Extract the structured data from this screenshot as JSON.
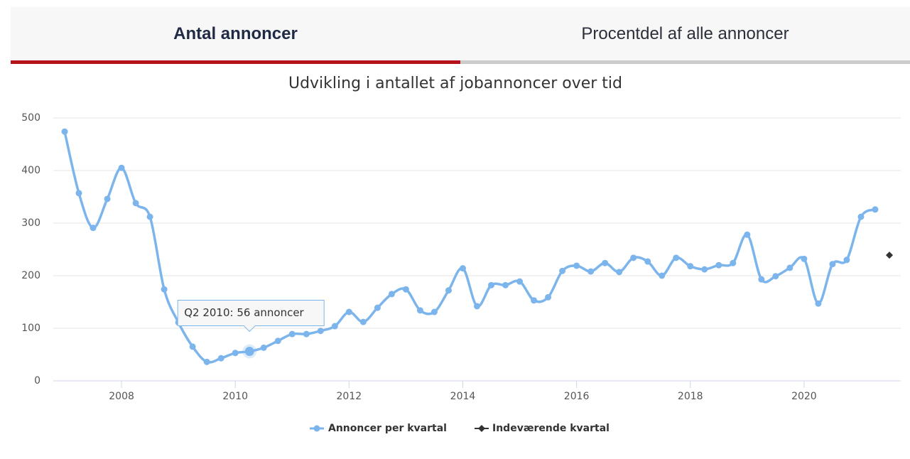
{
  "tabs": [
    "Antal annoncer",
    "Procentdel af alle annoncer"
  ],
  "chart_data": {
    "type": "line",
    "title": "Udvikling i antallet af jobannoncer over tid",
    "xlim": [
      2006.8,
      2021.7
    ],
    "xticks": [
      2008,
      2010,
      2012,
      2014,
      2016,
      2018,
      2020
    ],
    "ylim": [
      0,
      500
    ],
    "yticks": [
      0,
      100,
      200,
      300,
      400,
      500
    ],
    "grid": true,
    "annotations": [
      {
        "text": "Q2 2010: 56 annoncer",
        "x": 2010.25
      }
    ],
    "series": [
      {
        "name": "Annoncer per kvartal",
        "color": "#7cb5ec",
        "marker": "circle",
        "x": [
          2007,
          2007.25,
          2007.5,
          2007.75,
          2008,
          2008.25,
          2008.5,
          2008.75,
          2009,
          2009.25,
          2009.5,
          2009.75,
          2010,
          2010.25,
          2010.5,
          2010.75,
          2011,
          2011.25,
          2011.5,
          2011.75,
          2012,
          2012.25,
          2012.5,
          2012.75,
          2013,
          2013.25,
          2013.5,
          2013.75,
          2014,
          2014.25,
          2014.5,
          2014.75,
          2015,
          2015.25,
          2015.5,
          2015.75,
          2016,
          2016.25,
          2016.5,
          2016.75,
          2017,
          2017.25,
          2017.5,
          2017.75,
          2018,
          2018.25,
          2018.5,
          2018.75,
          2019,
          2019.25,
          2019.5,
          2019.75,
          2020,
          2020.25,
          2020.5,
          2020.75,
          2021,
          2021.25
        ],
        "values": [
          474,
          357,
          291,
          346,
          405,
          338,
          312,
          174,
          111,
          65,
          36,
          43,
          53,
          56,
          63,
          76,
          89,
          89,
          95,
          104,
          131,
          112,
          139,
          165,
          174,
          134,
          131,
          172,
          214,
          142,
          182,
          182,
          189,
          153,
          159,
          209,
          219,
          208,
          224,
          207,
          234,
          227,
          200,
          234,
          218,
          212,
          220,
          224,
          278,
          193,
          199,
          215,
          232,
          147,
          222,
          230,
          312,
          326
        ]
      },
      {
        "name": "Indeværende kvartal",
        "color": "#333333",
        "marker": "diamond",
        "x": [
          2021.5
        ],
        "values": [
          239
        ]
      }
    ]
  }
}
